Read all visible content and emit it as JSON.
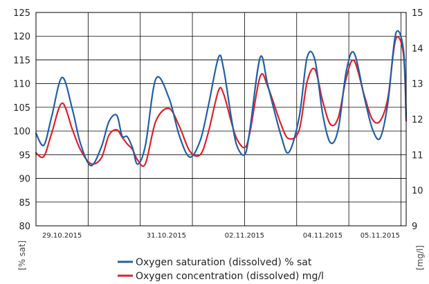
{
  "chart_data": {
    "type": "line",
    "title": "",
    "y_left": {
      "label": "[% sat]",
      "range": [
        80,
        125
      ],
      "ticks": [
        80,
        85,
        90,
        95,
        100,
        105,
        110,
        115,
        120,
        125
      ]
    },
    "y_right": {
      "label": "[mg/l]",
      "range": [
        9,
        15
      ],
      "ticks": [
        9,
        10,
        11,
        12,
        13,
        14,
        15
      ]
    },
    "x_axis": {
      "range": [
        0,
        7.1
      ],
      "tick_positions": [
        0,
        1,
        2,
        3,
        4,
        5,
        6,
        7
      ],
      "tick_labels": [
        {
          "pos": 0.5,
          "text": "29.10.2015"
        },
        {
          "pos": 2.5,
          "text": "31.10.2015"
        },
        {
          "pos": 4.0,
          "text": "02.11.2015"
        },
        {
          "pos": 5.5,
          "text": "04.11.2015"
        },
        {
          "pos": 6.6,
          "text": "05.11.2015"
        }
      ]
    },
    "grid": true,
    "legend_position": "bottom-center",
    "series": [
      {
        "name": "Oxygen saturation (dissolved) % sat",
        "axis": "left",
        "color": "#1f5fa8",
        "x": [
          0.0,
          0.15,
          0.3,
          0.5,
          0.7,
          0.85,
          1.05,
          1.25,
          1.4,
          1.55,
          1.65,
          1.75,
          1.85,
          1.95,
          2.1,
          2.3,
          2.55,
          2.75,
          2.95,
          3.15,
          3.3,
          3.5,
          3.6,
          3.75,
          3.85,
          4.0,
          4.1,
          4.3,
          4.45,
          4.7,
          4.85,
          5.05,
          5.2,
          5.35,
          5.5,
          5.65,
          5.8,
          5.95,
          6.1,
          6.3,
          6.45,
          6.6,
          6.75,
          6.9,
          7.05,
          7.1
        ],
        "y": [
          99.5,
          97.0,
          103.0,
          111.3,
          104.5,
          97.5,
          92.7,
          96.5,
          102.0,
          103.3,
          99.0,
          98.8,
          96.5,
          93.0,
          97.0,
          111.0,
          107.0,
          99.0,
          94.5,
          98.0,
          105.0,
          115.5,
          113.0,
          102.5,
          97.0,
          95.0,
          100.0,
          115.5,
          109.5,
          99.0,
          95.5,
          103.0,
          115.5,
          115.0,
          103.5,
          97.5,
          100.5,
          112.5,
          116.5,
          107.0,
          100.5,
          98.5,
          106.0,
          120.5,
          117.0,
          103.0
        ]
      },
      {
        "name": "Oxygen concentration (dissolved) mg/l",
        "axis": "right",
        "color": "#e0202a",
        "x": [
          0.0,
          0.15,
          0.3,
          0.5,
          0.7,
          0.85,
          1.05,
          1.25,
          1.4,
          1.55,
          1.65,
          1.75,
          1.85,
          1.95,
          2.1,
          2.3,
          2.55,
          2.75,
          2.95,
          3.15,
          3.3,
          3.5,
          3.6,
          3.75,
          3.85,
          4.0,
          4.1,
          4.3,
          4.45,
          4.7,
          4.85,
          5.05,
          5.2,
          5.35,
          5.5,
          5.65,
          5.8,
          5.95,
          6.1,
          6.3,
          6.45,
          6.6,
          6.75,
          6.9,
          7.05,
          7.1
        ],
        "y": [
          11.05,
          10.95,
          11.6,
          12.45,
          11.7,
          11.15,
          10.75,
          10.9,
          11.55,
          11.7,
          11.5,
          11.3,
          11.15,
          10.85,
          10.75,
          11.95,
          12.3,
          11.8,
          11.1,
          11.0,
          11.6,
          12.8,
          12.7,
          11.9,
          11.45,
          11.2,
          11.6,
          13.2,
          12.9,
          11.85,
          11.45,
          11.7,
          13.05,
          13.4,
          12.5,
          11.85,
          12.05,
          13.15,
          13.65,
          12.65,
          12.0,
          11.95,
          12.6,
          14.25,
          13.8,
          11.95
        ]
      }
    ]
  }
}
